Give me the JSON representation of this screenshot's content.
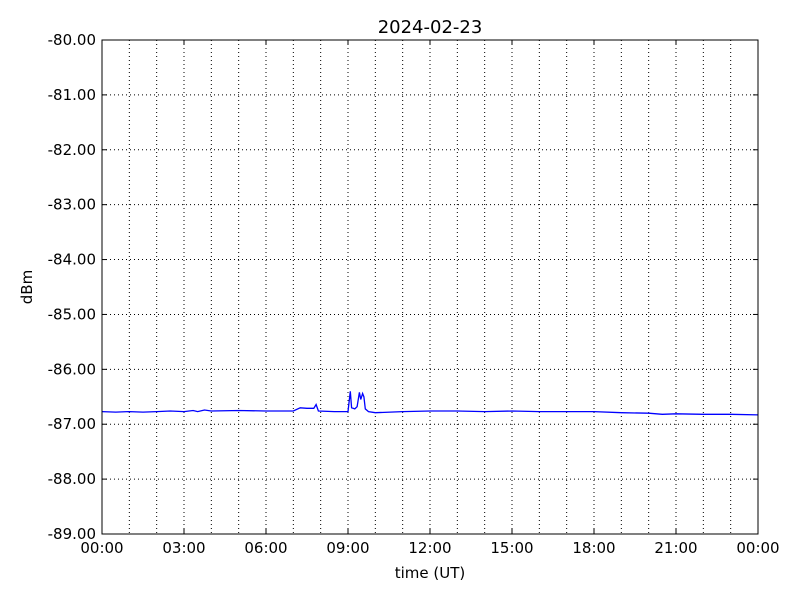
{
  "chart_data": {
    "type": "line",
    "title": "2024-02-23",
    "xlabel": "time (UT)",
    "ylabel": "dBm",
    "xlim": [
      "2024-02-23T00:00",
      "2024-02-24T00:00"
    ],
    "ylim": [
      -89,
      -80
    ],
    "x_ticks": [
      "00:00",
      "03:00",
      "06:00",
      "09:00",
      "12:00",
      "15:00",
      "18:00",
      "21:00",
      "00:00"
    ],
    "y_ticks": [
      "-80.00",
      "-81.00",
      "-82.00",
      "-83.00",
      "-84.00",
      "-85.00",
      "-86.00",
      "-87.00",
      "-88.00",
      "-89.00"
    ],
    "grid": true,
    "grid_style": "dotted",
    "series": [
      {
        "color": "#0000ff",
        "x": [
          "00:00",
          "00:30",
          "01:00",
          "01:30",
          "02:00",
          "02:30",
          "03:00",
          "03:20",
          "03:30",
          "03:45",
          "04:00",
          "05:00",
          "06:00",
          "07:00",
          "07:15",
          "07:30",
          "07:45",
          "07:50",
          "07:55",
          "08:30",
          "09:00",
          "09:05",
          "09:08",
          "09:15",
          "09:20",
          "09:25",
          "09:28",
          "09:32",
          "09:35",
          "09:38",
          "09:45",
          "10:00",
          "11:00",
          "12:00",
          "13:00",
          "14:00",
          "15:00",
          "16:00",
          "17:00",
          "18:00",
          "19:00",
          "20:00",
          "20:30",
          "21:00",
          "22:00",
          "23:00",
          "24:00"
        ],
        "y": [
          -86.77,
          -86.78,
          -86.77,
          -86.78,
          -86.77,
          -86.76,
          -86.77,
          -86.75,
          -86.77,
          -86.74,
          -86.76,
          -86.75,
          -86.76,
          -86.76,
          -86.7,
          -86.71,
          -86.71,
          -86.64,
          -86.76,
          -86.77,
          -86.77,
          -86.4,
          -86.7,
          -86.72,
          -86.68,
          -86.42,
          -86.55,
          -86.44,
          -86.5,
          -86.72,
          -86.77,
          -86.79,
          -86.77,
          -86.76,
          -86.76,
          -86.77,
          -86.76,
          -86.77,
          -86.77,
          -86.77,
          -86.79,
          -86.8,
          -86.82,
          -86.81,
          -86.82,
          -86.82,
          -86.83
        ]
      }
    ]
  }
}
